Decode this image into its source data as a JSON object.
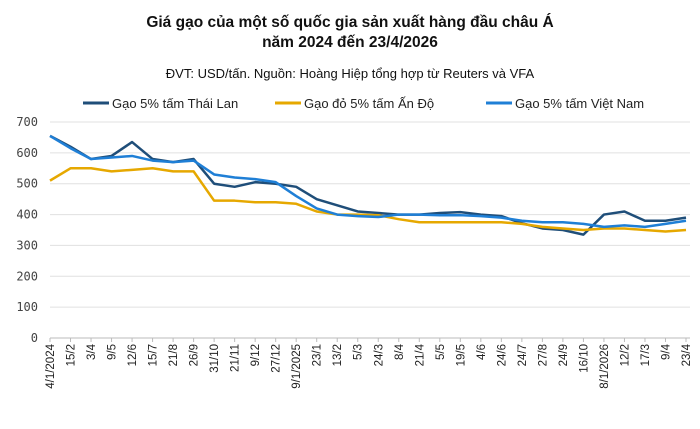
{
  "chart_data": {
    "type": "line",
    "title": [
      "Giá gạo của một số quốc gia sản xuất hàng đầu châu Á",
      "năm 2024 đến 23/4/2026"
    ],
    "subtitle": "ĐVT: USD/tấn. Nguồn: Hoàng Hiệp tổng hợp từ Reuters và VFA",
    "ylim": [
      0,
      700
    ],
    "yticks": [
      0,
      100,
      200,
      300,
      400,
      500,
      600,
      700
    ],
    "grid": true,
    "legend": "top",
    "categories": [
      "4/1/2024",
      "15/2",
      "3/4",
      "9/5",
      "12/6",
      "15/7",
      "21/8",
      "26/9",
      "31/10",
      "21/11",
      "9/12",
      "27/12",
      "9/1/2025",
      "23/1",
      "13/2",
      "5/3",
      "24/3",
      "8/4",
      "21/4",
      "5/5",
      "19/5",
      "4/6",
      "24/6",
      "24/7",
      "27/8",
      "24/9",
      "16/10",
      "8/1/2026",
      "12/2",
      "17/3",
      "9/4",
      "23/4"
    ],
    "series": [
      {
        "name": "Gạo 5% tấm Thái Lan",
        "color": "#1f4e79",
        "values": [
          655,
          620,
          580,
          590,
          635,
          580,
          570,
          580,
          500,
          490,
          505,
          500,
          490,
          450,
          430,
          410,
          405,
          400,
          400,
          405,
          408,
          400,
          395,
          372,
          355,
          350,
          335,
          400,
          410,
          380,
          380,
          390
        ]
      },
      {
        "name": "Gạo đỏ 5% tấm Ấn Độ",
        "color": "#e6a800",
        "values": [
          510,
          550,
          550,
          540,
          545,
          550,
          540,
          540,
          445,
          445,
          440,
          440,
          435,
          410,
          400,
          400,
          398,
          385,
          375,
          375,
          375,
          375,
          375,
          370,
          360,
          355,
          350,
          355,
          355,
          350,
          345,
          350
        ]
      },
      {
        "name": "Gạo 5% tấm Việt Nam",
        "color": "#1f7fd6",
        "values": [
          655,
          615,
          580,
          585,
          590,
          575,
          570,
          575,
          530,
          520,
          515,
          505,
          460,
          420,
          400,
          395,
          392,
          400,
          400,
          398,
          398,
          395,
          390,
          380,
          375,
          375,
          370,
          360,
          365,
          360,
          370,
          380
        ]
      }
    ]
  }
}
